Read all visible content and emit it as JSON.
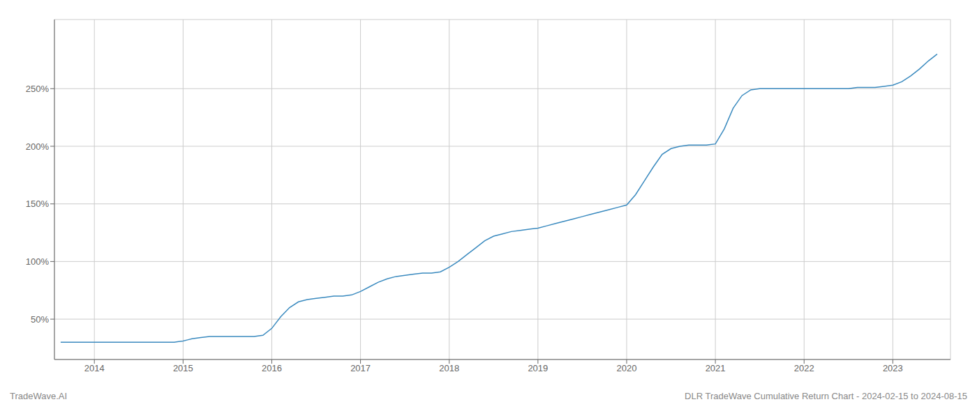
{
  "chart_data": {
    "type": "line",
    "x": [
      2013.62,
      2013.7,
      2013.8,
      2013.9,
      2014.0,
      2014.1,
      2014.2,
      2014.3,
      2014.4,
      2014.5,
      2014.6,
      2014.7,
      2014.8,
      2014.9,
      2015.0,
      2015.05,
      2015.1,
      2015.2,
      2015.3,
      2015.4,
      2015.5,
      2015.6,
      2015.7,
      2015.8,
      2015.9,
      2016.0,
      2016.1,
      2016.2,
      2016.3,
      2016.4,
      2016.5,
      2016.6,
      2016.7,
      2016.8,
      2016.9,
      2017.0,
      2017.1,
      2017.2,
      2017.3,
      2017.4,
      2017.5,
      2017.6,
      2017.7,
      2017.8,
      2017.9,
      2018.0,
      2018.1,
      2018.2,
      2018.3,
      2018.4,
      2018.5,
      2018.6,
      2018.7,
      2018.8,
      2018.9,
      2019.0,
      2019.1,
      2019.2,
      2019.3,
      2019.4,
      2019.5,
      2019.6,
      2019.7,
      2019.8,
      2019.9,
      2020.0,
      2020.1,
      2020.2,
      2020.3,
      2020.4,
      2020.5,
      2020.6,
      2020.7,
      2020.8,
      2020.9,
      2021.0,
      2021.1,
      2021.2,
      2021.3,
      2021.4,
      2021.5,
      2021.6,
      2021.7,
      2021.8,
      2021.9,
      2022.0,
      2022.1,
      2022.2,
      2022.3,
      2022.4,
      2022.5,
      2022.6,
      2022.7,
      2022.8,
      2022.9,
      2023.0,
      2023.1,
      2023.2,
      2023.3,
      2023.4,
      2023.5
    ],
    "values": [
      30,
      30,
      30,
      30,
      30,
      30,
      30,
      30,
      30,
      30,
      30,
      30,
      30,
      30,
      31,
      32,
      33,
      34,
      35,
      35,
      35,
      35,
      35,
      35,
      36,
      42,
      52,
      60,
      65,
      67,
      68,
      69,
      70,
      70,
      71,
      74,
      78,
      82,
      85,
      87,
      88,
      89,
      90,
      90,
      91,
      95,
      100,
      106,
      112,
      118,
      122,
      124,
      126,
      127,
      128,
      129,
      131,
      133,
      135,
      137,
      139,
      141,
      143,
      145,
      147,
      149,
      158,
      170,
      182,
      193,
      198,
      200,
      201,
      201,
      201,
      202,
      215,
      233,
      244,
      249,
      250,
      250,
      250,
      250,
      250,
      250,
      250,
      250,
      250,
      250,
      250,
      251,
      251,
      251,
      252,
      253,
      256,
      261,
      267,
      274,
      280
    ],
    "color": "#3a8abf",
    "xlim": [
      2013.55,
      2023.65
    ],
    "xticks": [
      2014,
      2015,
      2016,
      2017,
      2018,
      2019,
      2020,
      2021,
      2022,
      2023
    ],
    "ylim": [
      15,
      310
    ],
    "yticks": [
      {
        "value": 50,
        "label": "50%"
      },
      {
        "value": 100,
        "label": "100%"
      },
      {
        "value": 150,
        "label": "150%"
      },
      {
        "value": 200,
        "label": "200%"
      },
      {
        "value": 250,
        "label": "250%"
      }
    ],
    "grid": true,
    "annotations": [
      "TradeWave.AI",
      "DLR TradeWave Cumulative Return Chart - 2024-02-15 to 2024-08-15"
    ]
  }
}
